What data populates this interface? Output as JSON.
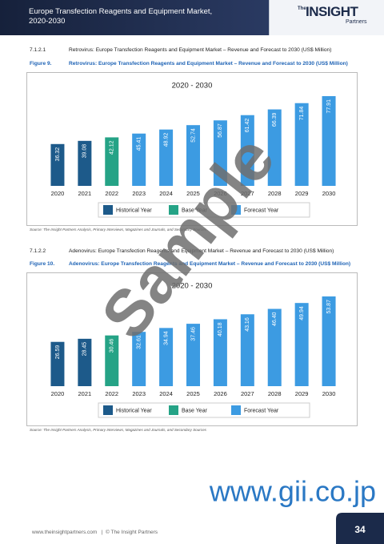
{
  "header": {
    "title": "Europe Transfection Reagents and Equipment Market, 2020-2030",
    "logo": {
      "prefix": "The",
      "name": "INSIGHT",
      "suffix": "Partners"
    }
  },
  "sections": [
    {
      "number": "7.1.2.1",
      "heading": "Retrovirus: Europe Transfection Reagents and Equipment Market – Revenue and Forecast to 2030 (US$ Million)",
      "figure_label": "Figure 9.",
      "figure_caption": "Retrovirus: Europe Transfection Reagents and Equipment Market – Revenue and Forecast to 2030 (US$ Million)",
      "source": "Source: The Insight Partners Analysis, Primary Interviews, Magazines and Journals, and Secondary Sources"
    },
    {
      "number": "7.1.2.2",
      "heading": "Adenovirus: Europe Transfection Reagents and Equipment Market – Revenue and Forecast to 2030 (US$ Million)",
      "figure_label": "Figure 10.",
      "figure_caption": "Adenovirus: Europe Transfection Reagents and Equipment Market – Revenue and Forecast to 2030 (US$ Million)",
      "source": "Source: The Insight Partners Analysis, Primary Interviews, Magazines and Journals, and Secondary Sources"
    }
  ],
  "chart_data": [
    {
      "type": "bar",
      "title": "2020 - 2030",
      "categories": [
        "2020",
        "2021",
        "2022",
        "2023",
        "2024",
        "2025",
        "2026",
        "2027",
        "2028",
        "2029",
        "2030"
      ],
      "series": [
        {
          "name": "Historical Year",
          "color": "#1d5a8a",
          "values": [
            36.32,
            39.08,
            null,
            null,
            null,
            null,
            null,
            null,
            null,
            null,
            null
          ]
        },
        {
          "name": "Base Year",
          "color": "#25a386",
          "values": [
            null,
            null,
            42.12,
            null,
            null,
            null,
            null,
            null,
            null,
            null,
            null
          ]
        },
        {
          "name": "Forecast Year",
          "color": "#3c9be2",
          "values": [
            null,
            null,
            null,
            45.41,
            48.92,
            52.74,
            56.87,
            61.42,
            66.39,
            71.84,
            77.91
          ]
        }
      ]
    },
    {
      "type": "bar",
      "title": "2020 - 2030",
      "categories": [
        "2020",
        "2021",
        "2022",
        "2023",
        "2024",
        "2025",
        "2026",
        "2027",
        "2028",
        "2029",
        "2030"
      ],
      "series": [
        {
          "name": "Historical Year",
          "color": "#1d5a8a",
          "values": [
            26.59,
            28.45,
            null,
            null,
            null,
            null,
            null,
            null,
            null,
            null,
            null
          ]
        },
        {
          "name": "Base Year",
          "color": "#25a386",
          "values": [
            null,
            null,
            30.46,
            null,
            null,
            null,
            null,
            null,
            null,
            null,
            null
          ]
        },
        {
          "name": "Forecast Year",
          "color": "#3c9be2",
          "values": [
            null,
            null,
            null,
            32.61,
            34.94,
            37.46,
            40.18,
            43.16,
            46.4,
            49.94,
            53.87
          ],
          "value_labels": [
            null,
            null,
            null,
            "32.61",
            "34.94",
            "37.46",
            "40.18",
            "43.16",
            "46.40",
            "49.94",
            "53.87"
          ]
        }
      ]
    }
  ],
  "watermark": "Sample",
  "watermark_url": "www.gii.co.jp",
  "footer": {
    "website": "www.theinsightpartners.com",
    "separator": "|",
    "copyright": "© The Insight Partners",
    "page": "34"
  }
}
